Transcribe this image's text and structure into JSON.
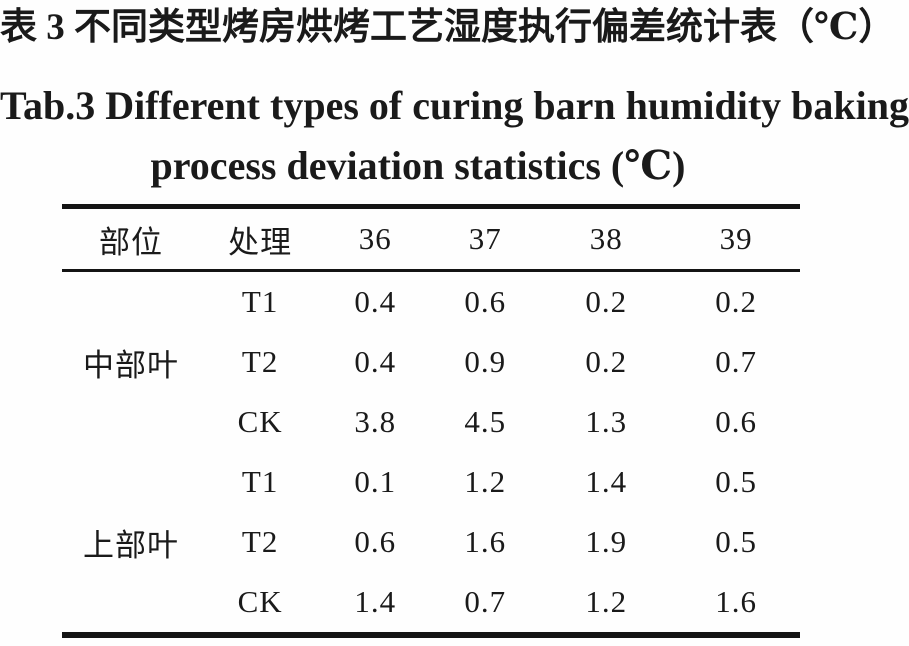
{
  "document": {
    "title_zh": "表 3 不同类型烤房烘烤工艺湿度执行偏差统计表（℃）",
    "title_en_line1": "Tab.3 Different types of curing barn humidity baking",
    "title_en_line2": "process deviation statistics (℃)"
  },
  "chart_data": {
    "type": "table",
    "title": "表 3 不同类型烤房烘烤工艺湿度执行偏差统计表（℃） / Tab.3 Different types of curing barn humidity baking process deviation statistics (℃)",
    "columns": [
      "部位",
      "处理",
      "36",
      "37",
      "38",
      "39"
    ],
    "groups": [
      {
        "position": "中部叶",
        "rows": [
          {
            "treatment": "T1",
            "values": [
              0.4,
              0.6,
              0.2,
              0.2
            ]
          },
          {
            "treatment": "T2",
            "values": [
              0.4,
              0.9,
              0.2,
              0.7
            ]
          },
          {
            "treatment": "CK",
            "values": [
              3.8,
              4.5,
              1.3,
              0.6
            ]
          }
        ]
      },
      {
        "position": "上部叶",
        "rows": [
          {
            "treatment": "T1",
            "values": [
              0.1,
              1.2,
              1.4,
              0.5
            ]
          },
          {
            "treatment": "T2",
            "values": [
              0.6,
              1.6,
              1.9,
              0.5
            ]
          },
          {
            "treatment": "CK",
            "values": [
              1.4,
              0.7,
              1.2,
              1.6
            ]
          }
        ]
      }
    ]
  },
  "colors": {
    "text": "#1a1a1a",
    "rule": "#141414",
    "background": "#fefefe"
  }
}
